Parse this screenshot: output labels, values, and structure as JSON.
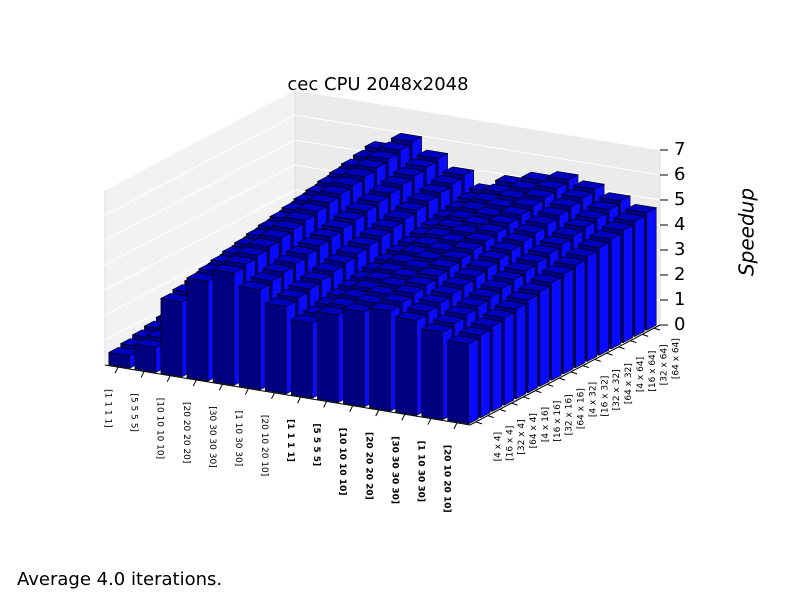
{
  "chart_data": {
    "type": "bar3d",
    "title": "cec CPU 2048x2048",
    "zlabel": "Speedup",
    "footer": "Average 4.0 iterations.",
    "categories": [
      "[1 1 1 1]",
      "[5 5 5 5]",
      "[10 10 10 10]",
      "[20 20 20 20]",
      "[30 30 30 30]",
      "[1 10 30 30]",
      "[20 10 20 10]",
      "[1 1 1 1]",
      "[5 5 5 5]",
      "[10 10 10 10]",
      "[20 20 20 20]",
      "[30 30 30 30]",
      "[1 10 30 30]",
      "[20 10 20 10]"
    ],
    "category_bold": [
      false,
      false,
      false,
      false,
      false,
      false,
      false,
      true,
      true,
      true,
      true,
      true,
      true,
      true
    ],
    "depth_categories": [
      "[4 x 4]",
      "[16 x 4]",
      "[32 x 4]",
      "[64 x 4]",
      "[4 x 16]",
      "[16 x 16]",
      "[32 x 16]",
      "[64 x 16]",
      "[4 x 32]",
      "[16 x 32]",
      "[32 x 32]",
      "[64 x 32]",
      "[4 x 64]",
      "[16 x 64]",
      "[32 x 64]",
      "[64 x 64]"
    ],
    "values": [
      [
        0.5,
        1.0,
        3.0,
        4.0,
        4.5,
        4.0,
        3.5,
        3.0,
        3.5,
        3.8,
        4.0,
        3.8,
        3.5,
        3.2
      ],
      [
        0.6,
        1.1,
        3.1,
        4.1,
        4.6,
        4.1,
        3.6,
        3.1,
        3.6,
        3.9,
        4.1,
        3.9,
        3.6,
        3.3
      ],
      [
        0.7,
        1.2,
        3.2,
        4.2,
        4.7,
        4.2,
        3.7,
        3.2,
        3.7,
        4.0,
        4.2,
        4.0,
        3.7,
        3.4
      ],
      [
        0.8,
        1.3,
        3.3,
        4.3,
        4.8,
        4.3,
        3.8,
        3.3,
        3.8,
        4.1,
        4.3,
        4.1,
        3.8,
        3.5
      ],
      [
        0.9,
        1.4,
        3.4,
        4.4,
        4.9,
        4.4,
        3.9,
        3.4,
        3.9,
        4.2,
        4.4,
        4.2,
        3.9,
        3.6
      ],
      [
        1.0,
        1.5,
        3.5,
        4.5,
        5.0,
        4.5,
        4.0,
        3.5,
        4.0,
        4.3,
        4.5,
        4.3,
        4.0,
        3.7
      ],
      [
        1.1,
        1.6,
        3.6,
        4.6,
        5.1,
        4.6,
        4.1,
        3.6,
        4.1,
        4.4,
        4.6,
        4.4,
        4.1,
        3.8
      ],
      [
        1.2,
        1.7,
        3.7,
        4.7,
        5.2,
        4.7,
        4.2,
        3.7,
        4.2,
        4.5,
        4.7,
        4.5,
        4.2,
        3.9
      ],
      [
        1.3,
        1.8,
        3.8,
        4.8,
        5.3,
        4.8,
        4.3,
        3.8,
        4.3,
        4.6,
        4.8,
        4.6,
        4.3,
        4.0
      ],
      [
        1.4,
        1.9,
        3.9,
        4.9,
        5.4,
        4.9,
        4.4,
        3.9,
        4.4,
        4.7,
        4.9,
        4.7,
        4.4,
        4.1
      ],
      [
        1.5,
        2.0,
        4.0,
        5.0,
        5.5,
        5.0,
        4.5,
        4.0,
        4.5,
        4.8,
        5.0,
        4.8,
        4.5,
        4.2
      ],
      [
        1.6,
        2.1,
        4.1,
        5.1,
        5.6,
        5.1,
        4.6,
        4.1,
        4.6,
        4.9,
        5.1,
        4.9,
        4.6,
        4.3
      ],
      [
        1.7,
        2.2,
        4.2,
        5.2,
        5.7,
        5.2,
        4.7,
        4.2,
        4.7,
        5.0,
        5.2,
        5.0,
        4.7,
        4.4
      ],
      [
        1.8,
        2.3,
        4.3,
        5.3,
        5.8,
        5.3,
        4.8,
        4.3,
        4.8,
        5.1,
        5.3,
        5.1,
        4.8,
        4.5
      ],
      [
        1.9,
        2.4,
        4.4,
        5.4,
        5.9,
        5.4,
        4.9,
        4.4,
        4.9,
        5.2,
        5.4,
        5.2,
        4.9,
        4.6
      ],
      [
        2.0,
        2.5,
        4.5,
        5.5,
        6.0,
        5.5,
        5.0,
        4.5,
        5.0,
        5.3,
        5.5,
        5.3,
        5.0,
        4.7
      ]
    ],
    "colors": {
      "front": "#000080",
      "side": "#0a0aff",
      "top": "#0000c0"
    },
    "zlim": [
      0,
      7
    ],
    "zticks": [
      0,
      1,
      2,
      3,
      4,
      5,
      6,
      7
    ],
    "grid": true
  }
}
